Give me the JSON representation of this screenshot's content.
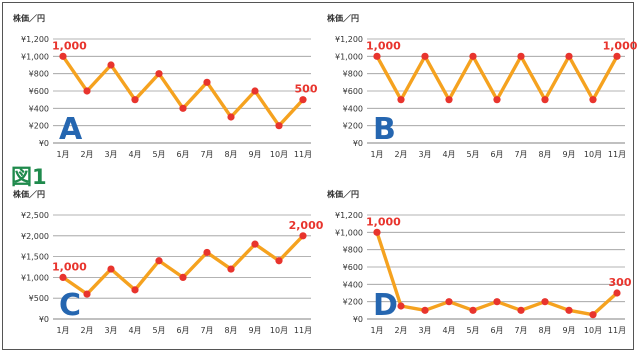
{
  "figure_label": "図1",
  "style": {
    "line_color": "#f5a21f",
    "point_color": "#e8342d",
    "callout_color": "#e8342d",
    "letter_color": "#2566b0",
    "grid_color": "#9a9a9a",
    "text_color": "#333333"
  },
  "chart_data": [
    {
      "type": "line",
      "panel_letter": "A",
      "ylabel": "株価／円",
      "categories": [
        "1月",
        "2月",
        "3月",
        "4月",
        "5月",
        "6月",
        "7月",
        "8月",
        "9月",
        "10月",
        "11月"
      ],
      "values": [
        1000,
        600,
        900,
        500,
        800,
        400,
        700,
        300,
        600,
        200,
        500
      ],
      "ylim": [
        0,
        1200
      ],
      "yticks": [
        "¥1,200",
        "¥1,000",
        "¥800",
        "¥600",
        "¥400",
        "¥200",
        "¥0"
      ],
      "callouts": [
        {
          "index": 0,
          "text": "1,000"
        },
        {
          "index": 10,
          "text": "500"
        }
      ]
    },
    {
      "type": "line",
      "panel_letter": "B",
      "ylabel": "株価／円",
      "categories": [
        "1月",
        "2月",
        "3月",
        "4月",
        "5月",
        "6月",
        "7月",
        "8月",
        "9月",
        "10月",
        "11月"
      ],
      "values": [
        1000,
        500,
        1000,
        500,
        1000,
        500,
        1000,
        500,
        1000,
        500,
        1000
      ],
      "ylim": [
        0,
        1200
      ],
      "yticks": [
        "¥1,200",
        "¥1,000",
        "¥800",
        "¥600",
        "¥400",
        "¥200",
        "¥0"
      ],
      "callouts": [
        {
          "index": 0,
          "text": "1,000"
        },
        {
          "index": 10,
          "text": "1,000"
        }
      ]
    },
    {
      "type": "line",
      "panel_letter": "C",
      "ylabel": "株価／円",
      "categories": [
        "1月",
        "2月",
        "3月",
        "4月",
        "5月",
        "6月",
        "7月",
        "8月",
        "9月",
        "10月",
        "11月"
      ],
      "values": [
        1000,
        600,
        1200,
        700,
        1400,
        1000,
        1600,
        1200,
        1800,
        1400,
        2000
      ],
      "ylim": [
        0,
        2500
      ],
      "yticks": [
        "¥2,500",
        "¥2,000",
        "¥1,500",
        "¥1,000",
        "¥500",
        "¥0"
      ],
      "callouts": [
        {
          "index": 0,
          "text": "1,000"
        },
        {
          "index": 10,
          "text": "2,000"
        }
      ]
    },
    {
      "type": "line",
      "panel_letter": "D",
      "ylabel": "株価／円",
      "categories": [
        "1月",
        "2月",
        "3月",
        "4月",
        "5月",
        "6月",
        "7月",
        "8月",
        "9月",
        "10月",
        "11月"
      ],
      "values": [
        1000,
        150,
        100,
        200,
        100,
        200,
        100,
        200,
        100,
        50,
        300
      ],
      "ylim": [
        0,
        1200
      ],
      "yticks": [
        "¥1,200",
        "¥1,000",
        "¥800",
        "¥600",
        "¥400",
        "¥200",
        "¥0"
      ],
      "callouts": [
        {
          "index": 0,
          "text": "1,000"
        },
        {
          "index": 10,
          "text": "300"
        }
      ]
    }
  ]
}
